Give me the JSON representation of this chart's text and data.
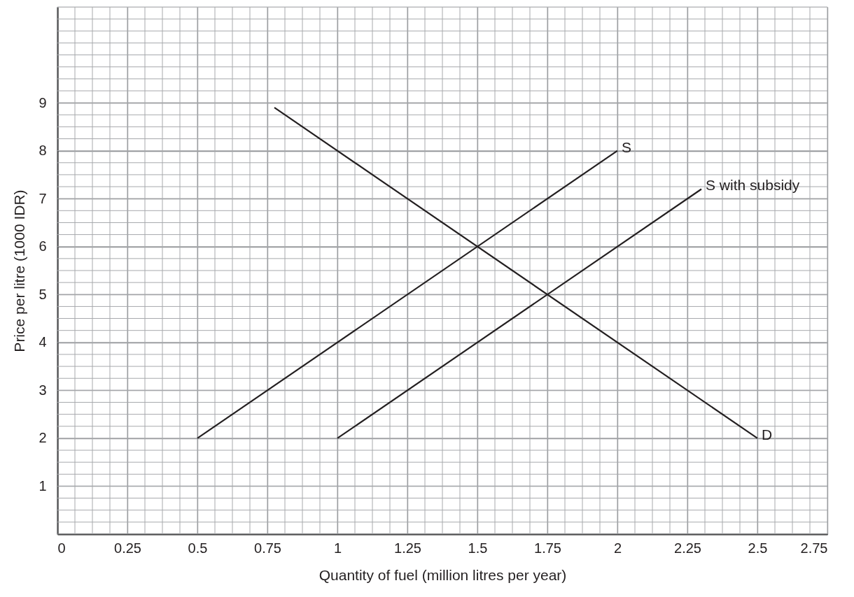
{
  "chart_data": {
    "type": "line",
    "xlabel": "Quantity of fuel (million litres per year)",
    "ylabel": "Price per litre (1000 IDR)",
    "xlim": [
      0,
      2.75
    ],
    "ylim": [
      0,
      11
    ],
    "xticks": [
      0,
      0.25,
      0.5,
      0.75,
      1,
      1.25,
      1.5,
      1.75,
      2,
      2.25,
      2.5,
      2.75
    ],
    "yticks": [
      1,
      2,
      3,
      4,
      5,
      6,
      7,
      8,
      9
    ],
    "grid": true,
    "legend": false,
    "marker": "none",
    "line_style": "solid",
    "series": [
      {
        "name": "D",
        "color": "#231f20",
        "x": [
          0.775,
          2.5
        ],
        "values": [
          8.9,
          2
        ]
      },
      {
        "name": "S",
        "color": "#231f20",
        "x": [
          0.5,
          2
        ],
        "values": [
          2,
          8
        ]
      },
      {
        "name": "S with subsidy",
        "color": "#231f20",
        "x": [
          1,
          2.3
        ],
        "values": [
          2,
          7.2
        ]
      }
    ]
  }
}
